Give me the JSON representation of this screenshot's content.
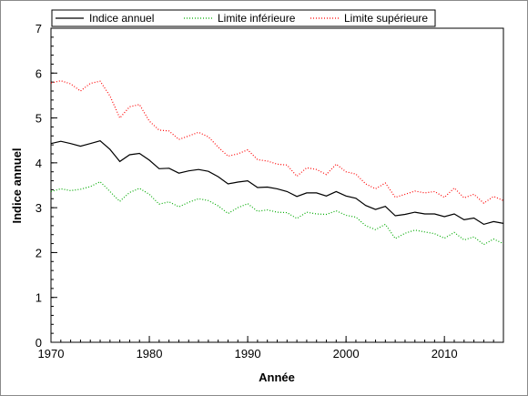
{
  "chart_data": {
    "type": "line",
    "xlabel": "Année",
    "ylabel": "Indice annuel",
    "xlim": [
      1970,
      2016
    ],
    "ylim": [
      0,
      7
    ],
    "xticks": [
      1970,
      1980,
      1990,
      2000,
      2010
    ],
    "yticks": [
      0,
      1,
      2,
      3,
      4,
      5,
      6,
      7
    ],
    "grid": false,
    "legend_position": "top",
    "x": [
      1970,
      1971,
      1972,
      1973,
      1974,
      1975,
      1976,
      1977,
      1978,
      1979,
      1980,
      1981,
      1982,
      1983,
      1984,
      1985,
      1986,
      1987,
      1988,
      1989,
      1990,
      1991,
      1992,
      1993,
      1994,
      1995,
      1996,
      1997,
      1998,
      1999,
      2000,
      2001,
      2002,
      2003,
      2004,
      2005,
      2006,
      2007,
      2008,
      2009,
      2010,
      2011,
      2012,
      2013,
      2014,
      2015,
      2016
    ],
    "series": [
      {
        "name": "Indice annuel",
        "color": "#000000",
        "style": "solid",
        "values": [
          4.43,
          4.48,
          4.43,
          4.37,
          4.43,
          4.49,
          4.3,
          4.03,
          4.18,
          4.21,
          4.06,
          3.87,
          3.88,
          3.77,
          3.82,
          3.85,
          3.81,
          3.69,
          3.53,
          3.57,
          3.6,
          3.45,
          3.46,
          3.42,
          3.36,
          3.25,
          3.33,
          3.33,
          3.26,
          3.36,
          3.26,
          3.21,
          3.05,
          2.96,
          3.03,
          2.82,
          2.85,
          2.9,
          2.86,
          2.86,
          2.8,
          2.86,
          2.73,
          2.77,
          2.63,
          2.69,
          2.65
        ]
      },
      {
        "name": "Limite inférieure",
        "color": "#00aa00",
        "style": "dotted",
        "values": [
          3.36,
          3.42,
          3.38,
          3.41,
          3.47,
          3.58,
          3.36,
          3.14,
          3.34,
          3.43,
          3.3,
          3.08,
          3.13,
          3.02,
          3.12,
          3.2,
          3.16,
          3.04,
          2.87,
          3.0,
          3.09,
          2.92,
          2.95,
          2.9,
          2.89,
          2.76,
          2.9,
          2.86,
          2.85,
          2.93,
          2.83,
          2.79,
          2.6,
          2.51,
          2.63,
          2.31,
          2.43,
          2.5,
          2.46,
          2.42,
          2.32,
          2.45,
          2.28,
          2.35,
          2.18,
          2.3,
          2.2
        ]
      },
      {
        "name": "Limite supérieure",
        "color": "#ff0000",
        "style": "dotted",
        "values": [
          5.78,
          5.83,
          5.76,
          5.6,
          5.77,
          5.82,
          5.49,
          5.0,
          5.25,
          5.3,
          4.93,
          4.73,
          4.71,
          4.52,
          4.6,
          4.68,
          4.58,
          4.35,
          4.15,
          4.2,
          4.29,
          4.07,
          4.04,
          3.97,
          3.95,
          3.7,
          3.89,
          3.85,
          3.74,
          3.97,
          3.8,
          3.75,
          3.53,
          3.42,
          3.55,
          3.23,
          3.3,
          3.37,
          3.33,
          3.36,
          3.23,
          3.44,
          3.22,
          3.3,
          3.1,
          3.25,
          3.16
        ]
      }
    ]
  }
}
